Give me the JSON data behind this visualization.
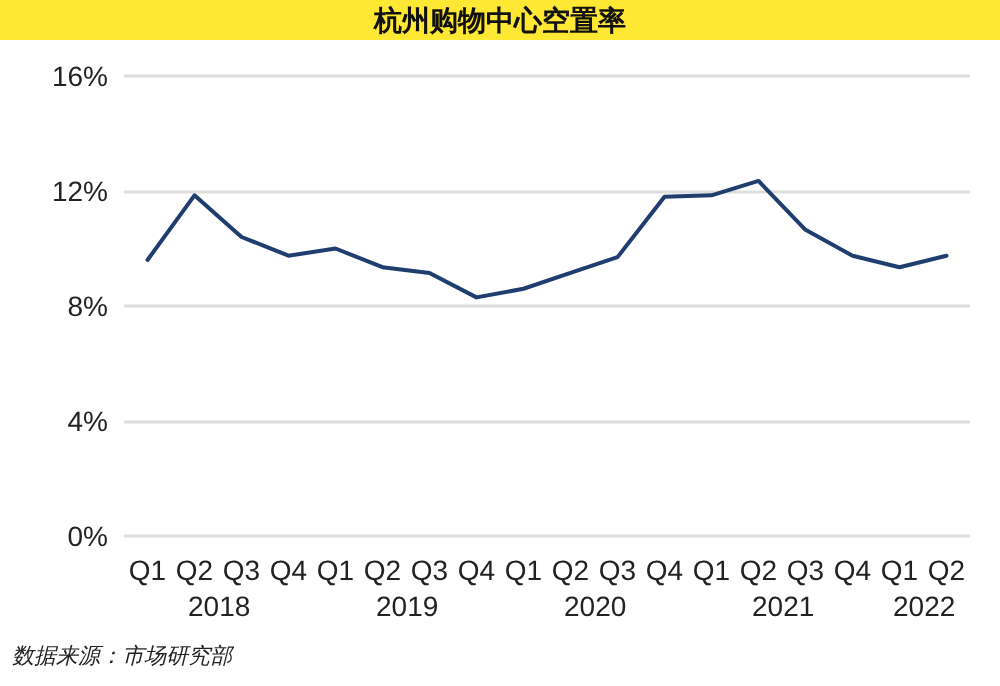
{
  "chart_data": {
    "type": "line",
    "title": "杭州购物中心空置率",
    "categories": [
      "Q1",
      "Q2",
      "Q3",
      "Q4",
      "Q1",
      "Q2",
      "Q3",
      "Q4",
      "Q1",
      "Q2",
      "Q3",
      "Q4",
      "Q1",
      "Q2",
      "Q3",
      "Q4",
      "Q1",
      "Q2"
    ],
    "series": [
      {
        "color": "#1f3d6e",
        "values": [
          9.6,
          11.85,
          10.4,
          9.75,
          10.0,
          9.35,
          9.15,
          8.3,
          8.6,
          9.15,
          9.7,
          11.8,
          11.85,
          12.35,
          10.65,
          9.75,
          9.35,
          9.75
        ]
      }
    ],
    "ylim": [
      0,
      16
    ],
    "yticks": [
      {
        "value": 0,
        "label": "0%"
      },
      {
        "value": 4,
        "label": "4%"
      },
      {
        "value": 8,
        "label": "8%"
      },
      {
        "value": 12,
        "label": "12%"
      },
      {
        "value": 16,
        "label": "16%"
      }
    ],
    "grid": "y",
    "marker": "none",
    "line_style": "solid",
    "annotations": [
      "2018",
      "2019",
      "2020",
      "2021",
      "2022",
      "数据来源：市场研究部"
    ]
  }
}
